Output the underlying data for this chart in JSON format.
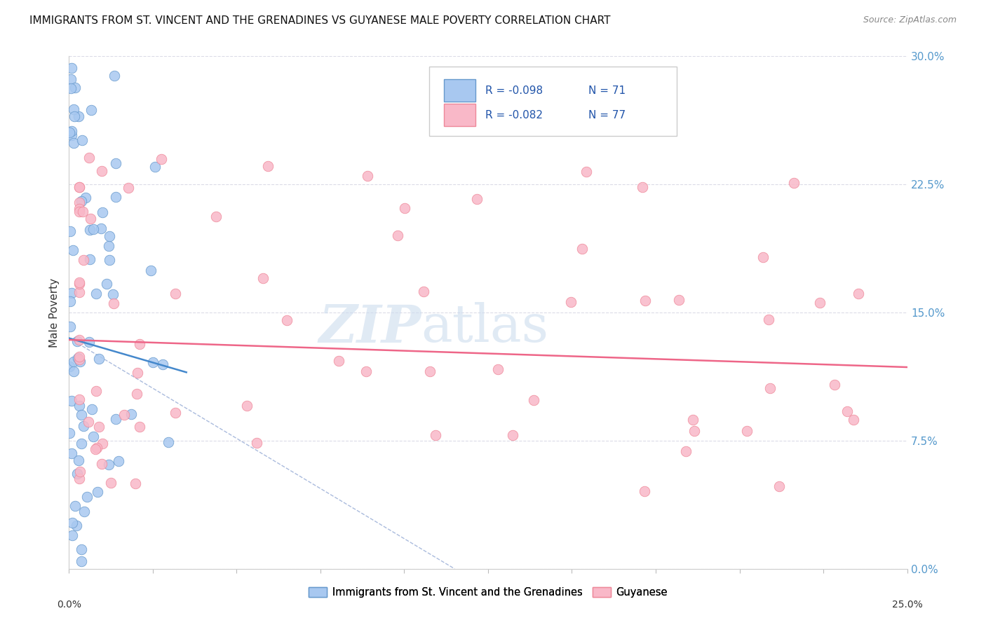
{
  "title": "IMMIGRANTS FROM ST. VINCENT AND THE GRENADINES VS GUYANESE MALE POVERTY CORRELATION CHART",
  "source": "Source: ZipAtlas.com",
  "ylabel": "Male Poverty",
  "ytick_values": [
    0.0,
    7.5,
    15.0,
    22.5,
    30.0
  ],
  "xlim": [
    0.0,
    25.0
  ],
  "ylim": [
    0.0,
    30.0
  ],
  "legend_r1": "-0.098",
  "legend_n1": "71",
  "legend_r2": "-0.082",
  "legend_n2": "77",
  "color_blue_fill": "#a8c8f0",
  "color_blue_edge": "#6699cc",
  "color_pink_fill": "#f9b8c8",
  "color_pink_edge": "#ee8899",
  "color_blue_line": "#4488cc",
  "color_pink_line": "#ee6688",
  "color_dashed": "#aabbdd",
  "label_blue": "Immigrants from St. Vincent and the Grenadines",
  "label_pink": "Guyanese",
  "watermark_zip": "ZIP",
  "watermark_atlas": "atlas",
  "blue_reg_x0": 0.0,
  "blue_reg_y0": 13.5,
  "blue_reg_x1": 3.5,
  "blue_reg_y1": 11.5,
  "pink_reg_x0": 0.0,
  "pink_reg_y0": 13.4,
  "pink_reg_x1": 25.0,
  "pink_reg_y1": 11.8,
  "dash_x0": 0.0,
  "dash_y0": 13.5,
  "dash_x1": 11.5,
  "dash_y1": 0.0,
  "seed_blue": 42,
  "seed_pink": 99
}
